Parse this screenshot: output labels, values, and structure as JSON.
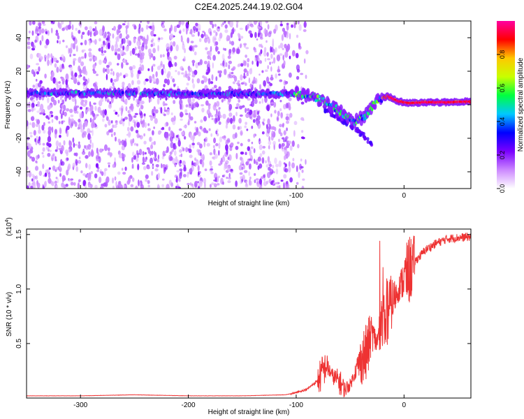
{
  "title": "C2E4.2025.244.19.02.G04",
  "chart_data": [
    {
      "type": "heatmap",
      "title": "C2E4.2025.244.19.02.G04",
      "xlabel": "Height of straight line (km)",
      "ylabel": "Frequency (Hz)",
      "xlim": [
        -350,
        62
      ],
      "ylim": [
        -50,
        50
      ],
      "x_ticks": [
        -300,
        -200,
        -100,
        0
      ],
      "y_ticks": [
        -40,
        -20,
        0,
        20,
        40
      ],
      "colorbar": {
        "label": "Normalized spectral amplitude",
        "range": [
          0,
          1
        ],
        "ticks": [
          "0.0",
          "0.2",
          "0.4",
          "0.6",
          "0.8"
        ],
        "colors": [
          "#ffffff",
          "#cc88ff",
          "#7a00ff",
          "#0000ff",
          "#00c8ff",
          "#00ff40",
          "#c8ff00",
          "#ffc800",
          "#ff0000",
          "#ff00a0"
        ]
      },
      "main_ridge": {
        "x": [
          -350,
          -300,
          -250,
          -200,
          -150,
          -120,
          -100,
          -85,
          -70,
          -55,
          -45,
          -35,
          -25,
          -15,
          -5,
          5,
          20,
          40,
          62
        ],
        "y": [
          7,
          7,
          7,
          6.5,
          6.5,
          6.5,
          6.5,
          5,
          1,
          -6,
          -10,
          -6,
          3,
          5,
          2,
          1,
          1.5,
          1.5,
          2
        ]
      },
      "descending_branch": {
        "x": [
          -75,
          -60,
          -50,
          -40,
          -35,
          -30
        ],
        "y": [
          -2,
          -8,
          -12,
          -17,
          -20,
          -23
        ]
      }
    },
    {
      "type": "line",
      "xlabel": "Height of straight line (km)",
      "ylabel": "SNR (10 * v/v)",
      "scale_label": "(x10",
      "scale_exp": "4",
      "scale_close": ")",
      "xlim": [
        -350,
        62
      ],
      "ylim": [
        0,
        1.55
      ],
      "x_ticks": [
        -300,
        -200,
        -100,
        0
      ],
      "y_ticks": [
        "0.5",
        "1.0",
        "1.5"
      ],
      "line_color": "#ee3333",
      "series": [
        {
          "x": [
            -350,
            -300,
            -250,
            -200,
            -150,
            -110,
            -100,
            -90,
            -80,
            -72,
            -66,
            -60,
            -55,
            -50,
            -45,
            -40,
            -35,
            -30,
            -25,
            -20,
            -15,
            -10,
            -5,
            0,
            10,
            20,
            30,
            40,
            50,
            62
          ],
          "y": [
            0.02,
            0.02,
            0.03,
            0.02,
            0.02,
            0.03,
            0.05,
            0.08,
            0.16,
            0.3,
            0.2,
            0.15,
            0.08,
            0.12,
            0.25,
            0.35,
            0.4,
            0.6,
            0.5,
            0.72,
            0.8,
            0.9,
            1.0,
            1.1,
            1.25,
            1.36,
            1.42,
            1.46,
            1.47,
            1.48
          ]
        }
      ]
    }
  ]
}
